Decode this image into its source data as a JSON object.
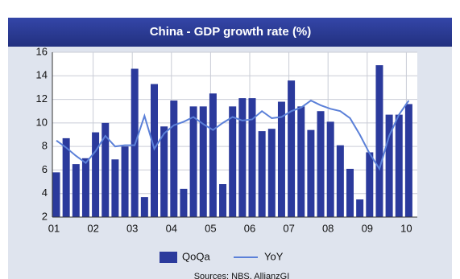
{
  "chart_data": {
    "type": "bar_line",
    "title": "China - GDP growth rate (%)",
    "categories": [
      "01",
      null,
      null,
      null,
      "02",
      null,
      null,
      null,
      "03",
      null,
      null,
      null,
      "04",
      null,
      null,
      null,
      "05",
      null,
      null,
      null,
      "06",
      null,
      null,
      null,
      "07",
      null,
      null,
      null,
      "08",
      null,
      null,
      null,
      "09",
      null,
      null,
      null,
      "10"
    ],
    "series": [
      {
        "name": "QoQa",
        "color": "#2b3a9c",
        "kind": "bar",
        "values": [
          5.8,
          8.7,
          6.5,
          7.0,
          9.2,
          10.0,
          6.9,
          8.0,
          14.6,
          3.7,
          13.3,
          9.7,
          11.9,
          4.4,
          11.4,
          11.4,
          12.5,
          4.8,
          11.4,
          12.1,
          12.1,
          9.3,
          9.5,
          11.8,
          13.6,
          11.4,
          9.4,
          11.0,
          10.1,
          8.1,
          6.1,
          3.5,
          7.5,
          14.9,
          10.7,
          10.7,
          11.6
        ]
      },
      {
        "name": "YoY",
        "color": "#5b80d8",
        "kind": "line",
        "values": [
          8.5,
          7.9,
          7.2,
          6.6,
          7.6,
          8.9,
          8.0,
          8.1,
          8.1,
          10.6,
          7.8,
          9.1,
          9.8,
          10.1,
          10.5,
          9.9,
          9.4,
          10.0,
          10.5,
          10.2,
          10.3,
          11.0,
          10.4,
          10.5,
          11.0,
          11.3,
          11.9,
          11.5,
          11.2,
          11.0,
          10.4,
          9.0,
          7.4,
          6.1,
          8.9,
          10.7,
          11.9
        ]
      }
    ],
    "ylim": [
      2,
      16
    ],
    "yticks": [
      2,
      4,
      6,
      8,
      10,
      12,
      14,
      16
    ],
    "grid": true,
    "legend": "bottom",
    "source": "Sources: NBS, AllianzGI"
  }
}
